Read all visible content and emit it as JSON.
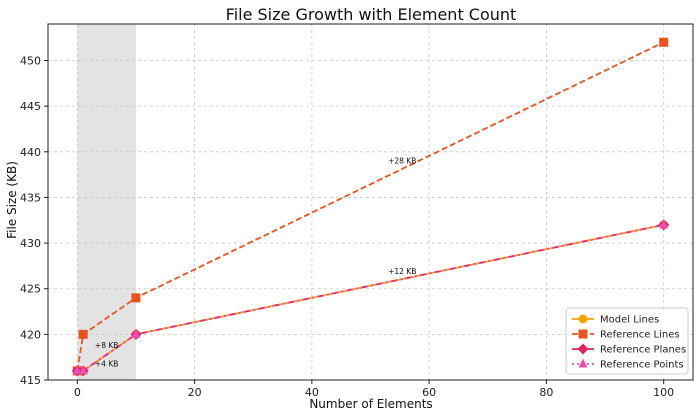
{
  "chart_data": {
    "type": "line",
    "title": "File Size Growth with Element Count",
    "xlabel": "Number of Elements",
    "ylabel": "File Size (KB)",
    "xlim": [
      -5,
      105
    ],
    "ylim": [
      415,
      454
    ],
    "xticks": [
      0,
      20,
      40,
      60,
      80,
      100
    ],
    "yticks": [
      415,
      420,
      425,
      430,
      435,
      440,
      445,
      450
    ],
    "grid": true,
    "legend_position": "lower-right",
    "highlight_region": {
      "x_start": 0,
      "x_end": 10,
      "color": "#d9d9d9"
    },
    "x": [
      0,
      1,
      10,
      100
    ],
    "series": [
      {
        "name": "Model Lines",
        "values": [
          416,
          416,
          420,
          432
        ],
        "color": "#f5a30a",
        "marker": "circle",
        "linestyle": "solid"
      },
      {
        "name": "Reference Lines",
        "values": [
          416,
          420,
          424,
          452
        ],
        "color": "#e8531e",
        "marker": "square",
        "linestyle": "dashed"
      },
      {
        "name": "Reference Planes",
        "values": [
          416,
          416,
          420,
          432
        ],
        "color": "#e0245e",
        "marker": "diamond",
        "linestyle": "dashdot"
      },
      {
        "name": "Reference Points",
        "values": [
          416,
          416,
          420,
          432
        ],
        "color": "#e84fb0",
        "marker": "triangle",
        "linestyle": "dotted"
      }
    ],
    "annotations": [
      {
        "text": "+8 KB",
        "x": 3,
        "y": 418.5
      },
      {
        "text": "+4 KB",
        "x": 3,
        "y": 416.5
      },
      {
        "text": "+28 KB",
        "x": 53,
        "y": 438.7
      },
      {
        "text": "+12 KB",
        "x": 53,
        "y": 426.6
      }
    ]
  }
}
